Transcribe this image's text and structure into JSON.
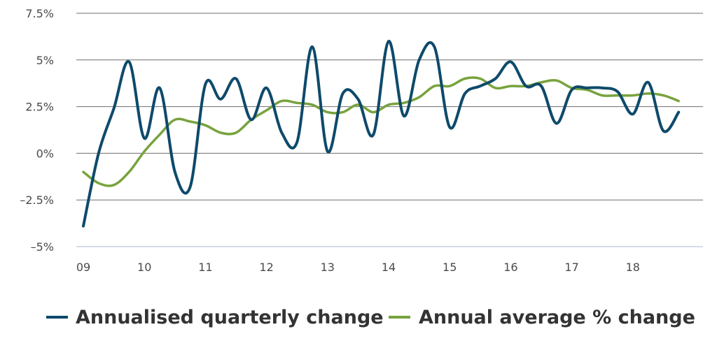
{
  "chart_data": {
    "type": "line",
    "title": "",
    "xlabel": "",
    "ylabel": "",
    "ylim": [
      -5,
      7.5
    ],
    "xlim": [
      2009,
      2018.8
    ],
    "grid": true,
    "legend_position": "bottom",
    "y_ticks": [
      {
        "value": 7.5,
        "label": "7.5%"
      },
      {
        "value": 5,
        "label": "5%"
      },
      {
        "value": 2.5,
        "label": "2.5%"
      },
      {
        "value": 0,
        "label": "0%"
      },
      {
        "value": -2.5,
        "label": "–2.5%"
      },
      {
        "value": -5,
        "label": "–5%"
      }
    ],
    "x_ticks": [
      {
        "value": 2009,
        "label": "09"
      },
      {
        "value": 2010,
        "label": "10"
      },
      {
        "value": 2011,
        "label": "11"
      },
      {
        "value": 2012,
        "label": "12"
      },
      {
        "value": 2013,
        "label": "13"
      },
      {
        "value": 2014,
        "label": "14"
      },
      {
        "value": 2015,
        "label": "15"
      },
      {
        "value": 2016,
        "label": "16"
      },
      {
        "value": 2017,
        "label": "17"
      },
      {
        "value": 2018,
        "label": "18"
      }
    ],
    "series": [
      {
        "name": "Annualised quarterly change",
        "color": "#0e4a6b",
        "x": [
          2009.0,
          2009.25,
          2009.5,
          2009.75,
          2010.0,
          2010.25,
          2010.5,
          2010.75,
          2011.0,
          2011.25,
          2011.5,
          2011.75,
          2012.0,
          2012.25,
          2012.5,
          2012.75,
          2013.0,
          2013.25,
          2013.5,
          2013.75,
          2014.0,
          2014.25,
          2014.5,
          2014.75,
          2015.0,
          2015.25,
          2015.5,
          2015.75,
          2016.0,
          2016.25,
          2016.5,
          2016.75,
          2017.0,
          2017.25,
          2017.5,
          2017.75,
          2018.0,
          2018.25,
          2018.5,
          2018.75
        ],
        "y": [
          -3.9,
          0.0,
          2.4,
          4.9,
          0.8,
          3.5,
          -1.0,
          -1.8,
          3.7,
          2.9,
          4.0,
          1.8,
          3.5,
          1.1,
          0.6,
          5.7,
          0.1,
          3.2,
          2.9,
          1.0,
          6.0,
          2.0,
          5.0,
          5.7,
          1.4,
          3.2,
          3.6,
          4.0,
          4.9,
          3.6,
          3.6,
          1.6,
          3.4,
          3.5,
          3.5,
          3.3,
          2.1,
          3.8,
          1.2,
          2.2
        ]
      },
      {
        "name": "Annual average % change",
        "color": "#77a33d",
        "x": [
          2009.0,
          2009.25,
          2009.5,
          2009.75,
          2010.0,
          2010.25,
          2010.5,
          2010.75,
          2011.0,
          2011.25,
          2011.5,
          2011.75,
          2012.0,
          2012.25,
          2012.5,
          2012.75,
          2013.0,
          2013.25,
          2013.5,
          2013.75,
          2014.0,
          2014.25,
          2014.5,
          2014.75,
          2015.0,
          2015.25,
          2015.5,
          2015.75,
          2016.0,
          2016.25,
          2016.5,
          2016.75,
          2017.0,
          2017.25,
          2017.5,
          2017.75,
          2018.0,
          2018.25,
          2018.5,
          2018.75
        ],
        "y": [
          -1.0,
          -1.6,
          -1.7,
          -1.0,
          0.1,
          1.0,
          1.8,
          1.7,
          1.5,
          1.1,
          1.1,
          1.8,
          2.3,
          2.8,
          2.7,
          2.6,
          2.2,
          2.2,
          2.6,
          2.2,
          2.6,
          2.7,
          3.0,
          3.6,
          3.6,
          4.0,
          4.0,
          3.5,
          3.6,
          3.6,
          3.8,
          3.9,
          3.5,
          3.4,
          3.1,
          3.1,
          3.1,
          3.2,
          3.1,
          2.8
        ]
      }
    ]
  }
}
